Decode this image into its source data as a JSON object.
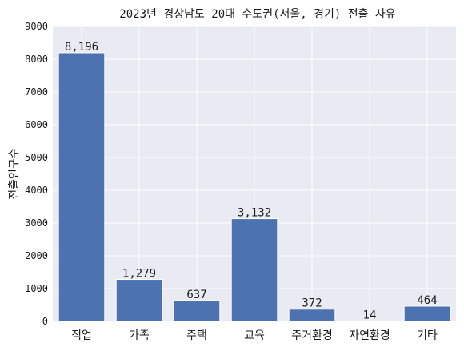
{
  "chart_data": {
    "type": "bar",
    "title": "2023년 경상남도 20대 수도권(서울, 경기) 전출 사유",
    "xlabel": "",
    "ylabel": "전출인구수",
    "categories": [
      "직업",
      "가족",
      "주택",
      "교육",
      "주거환경",
      "자연환경",
      "기타"
    ],
    "values": [
      8196,
      1279,
      637,
      3132,
      372,
      14,
      464
    ],
    "data_labels": [
      "8,196",
      "1,279",
      "637",
      "3,132",
      "372",
      "14",
      "464"
    ],
    "ylim": [
      0,
      9000
    ],
    "yticks": [
      0,
      1000,
      2000,
      3000,
      4000,
      5000,
      6000,
      7000,
      8000,
      9000
    ],
    "ytick_labels": [
      "0",
      "1000",
      "2000",
      "3000",
      "4000",
      "5000",
      "6000",
      "7000",
      "8000",
      "9000"
    ],
    "grid": true,
    "bar_color": "#4c72b0",
    "background_color": "#eaeaf2",
    "grid_color": "#ffffff"
  }
}
